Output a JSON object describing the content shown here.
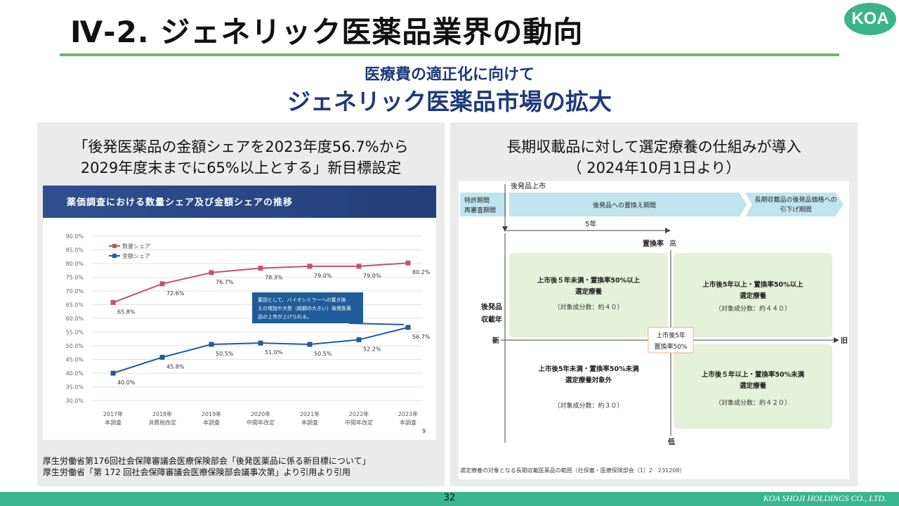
{
  "header": {
    "title": "Ⅳ-2.  ジェネリック医薬品業界の動向",
    "logo": "KOA",
    "subtitle1": "医療費の適正化に向けて",
    "subtitle2": "ジェネリック医薬品市場の拡大"
  },
  "left": {
    "heading_line1": "「後発医薬品の金額シェアを2023年度56.7%から",
    "heading_line2": "2029年度末までに65%以上とする」新目標設定",
    "chart_banner": "薬価調査における数量シェア及び金額シェアの推移",
    "page_mark": "9",
    "source_line1": "厚生労働省第176回社会保障審議会医療保険部会「後発医薬品に係る新目標について」",
    "source_line2": "厚生労働省「第 172 回社会保障審議会医療保険部会議事次第」より引用より引用"
  },
  "chart_data": {
    "type": "line",
    "title": "薬価調査における数量シェア及び金額シェアの推移",
    "categories": [
      "2017年",
      "2018年",
      "2019年",
      "2020年",
      "2021年",
      "2022年",
      "2023年"
    ],
    "sublabels": [
      "本調査",
      "消費税改定",
      "本調査",
      "中間年改定",
      "本調査",
      "中間年改定",
      "本調査"
    ],
    "series": [
      {
        "name": "数量シェア",
        "color": "#c8506e",
        "values": [
          65.8,
          72.6,
          76.7,
          78.3,
          79.0,
          79.0,
          80.2
        ],
        "labels": [
          "65.8%",
          "72.6%",
          "76.7%",
          "78.3%",
          "79.0%",
          "79.0%",
          "80.2%"
        ]
      },
      {
        "name": "金額シェア",
        "color": "#1f5c99",
        "values": [
          40.0,
          45.8,
          50.5,
          51.0,
          50.5,
          52.2,
          56.7
        ],
        "labels": [
          "40.0%",
          "45.8%",
          "50.5%",
          "51.0%",
          "50.5%",
          "52.2%",
          "56.7%"
        ]
      }
    ],
    "yticks": [
      "90.0%",
      "85.0%",
      "80.0%",
      "75.0%",
      "70.0%",
      "65.0%",
      "60.0%",
      "55.0%",
      "50.0%",
      "45.0%",
      "40.0%",
      "35.0%",
      "30.0%"
    ],
    "ylim": [
      30,
      90
    ],
    "annotation": [
      "要因として、バイオシミラーへの置き換",
      "えの増加や大型（総額の大きい）後発医薬",
      "品の上市が上げられる。"
    ]
  },
  "right": {
    "heading_line1": "長期収載品に対して選定療養の仕組みが導入",
    "heading_line2": "（ 2024年10月1日より）",
    "launch_label": "後発品上市",
    "timeline": {
      "patent_line1": "特許期間",
      "patent_line2": "再審査期間",
      "switch_period": "後発品への置換え期間",
      "price_line1": "長期収載品の後発品価格への",
      "price_line2": "引下げ期間"
    },
    "five_years": "5年",
    "rate_axis": "置換率",
    "high": "高",
    "low": "低",
    "years_axis_line1": "後発品",
    "years_axis_line2": "収載年",
    "new": "新",
    "old": "旧",
    "center_line1": "上市後5年",
    "center_line2": "置換率50%",
    "q1": {
      "line1": "上市後５年未満・置換率50%以上",
      "line2": "選定療養",
      "count": "（対象成分数：約４０）"
    },
    "q2": {
      "line1": "上市後5年以上・置換率50%以上",
      "line2": "選定療養",
      "count": "（対象成分数：約４４０）"
    },
    "q3": {
      "line1": "上市後5年未満・置換率50%未満",
      "line2": "選定療養対象外",
      "count": "（対象成分数：約３０）"
    },
    "q4": {
      "line1": "上市後５年以上・置換率50%未満",
      "line2": "選定療養",
      "count": "（対象成分数：約４２０）"
    },
    "source": "選定療養の対象となる長期収載医薬品の範囲（社保審・医療保険部会（1）2　231208）"
  },
  "footer": {
    "page": "32",
    "company": "KOA SHOJI HOLDINGS CO., LTD."
  }
}
